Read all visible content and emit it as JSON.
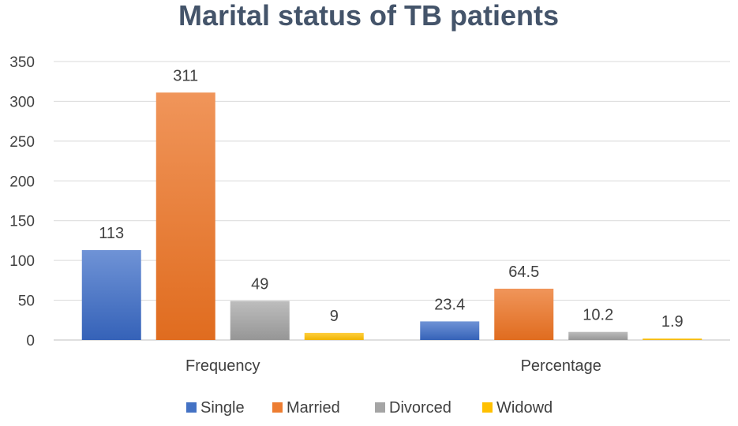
{
  "chart_data": {
    "type": "bar",
    "title": "Marital status of TB patients",
    "categories": [
      "Frequency",
      "Percentage"
    ],
    "series": [
      {
        "name": "Single",
        "values": [
          113,
          23.4
        ],
        "color": "#4472c4"
      },
      {
        "name": "Married",
        "values": [
          311,
          64.5
        ],
        "color": "#ed7d31"
      },
      {
        "name": "Divorced",
        "values": [
          49,
          10.2
        ],
        "color": "#a5a5a5"
      },
      {
        "name": "Widowd",
        "values": [
          9,
          1.9
        ],
        "color": "#ffc000"
      }
    ],
    "data_labels": [
      [
        "113",
        "23.4"
      ],
      [
        "311",
        "64.5"
      ],
      [
        "49",
        "10.2"
      ],
      [
        "9",
        "1.9"
      ]
    ],
    "yticks": [
      "0",
      "50",
      "100",
      "150",
      "200",
      "250",
      "300",
      "350"
    ],
    "ylim": [
      0,
      350
    ],
    "grid": true,
    "legend_position": "bottom"
  }
}
